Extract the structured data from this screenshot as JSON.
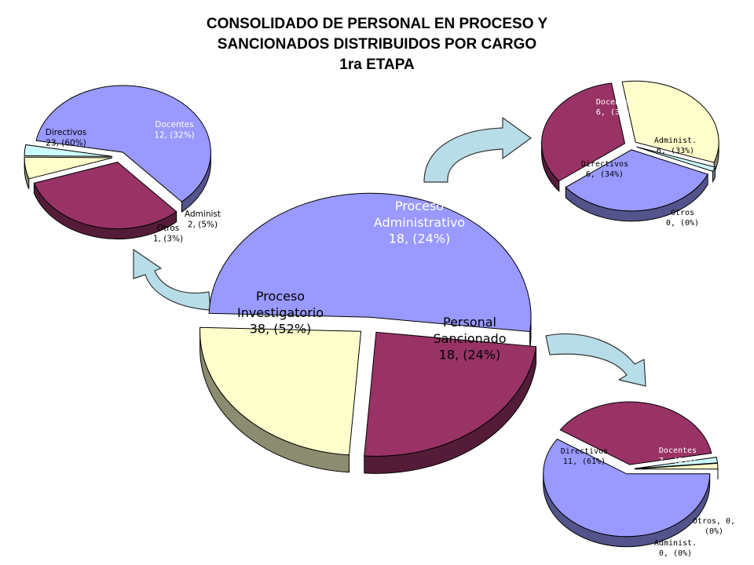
{
  "title": {
    "line1": "CONSOLIDADO DE PERSONAL EN PROCESO Y",
    "line2": "SANCIONADOS DISTRIBUIDOS POR CARGO",
    "line3": "1ra ETAPA"
  },
  "colors": {
    "directivos": "#9999ff",
    "docentes": "#993366",
    "administ": "#ffffcc",
    "otros": "#ccffff",
    "arrow": "#b7dde8"
  },
  "chart_data": [
    {
      "id": "main",
      "type": "pie",
      "slices": [
        {
          "name": "Proceso Investigatorio",
          "value": 38,
          "percent": 52,
          "color": "#9999ff",
          "label_lines": [
            "Proceso",
            "Investigatorio",
            "38, (52%)"
          ]
        },
        {
          "name": "Proceso Administrativo",
          "value": 18,
          "percent": 24,
          "color": "#993366",
          "label_lines": [
            "Proceso",
            "Administrativo",
            "18, (24%)"
          ]
        },
        {
          "name": "Personal Sancionado",
          "value": 18,
          "percent": 24,
          "color": "#ffffcc",
          "label_lines": [
            "Personal",
            "Sancionado",
            "18, (24%)"
          ]
        }
      ]
    },
    {
      "id": "investigatorio",
      "type": "pie",
      "slices": [
        {
          "name": "Directivos",
          "value": 23,
          "percent": 60,
          "color": "#9999ff",
          "label_lines": [
            "Directivos",
            "23, (60%)"
          ]
        },
        {
          "name": "Docentes",
          "value": 12,
          "percent": 32,
          "color": "#993366",
          "label_lines": [
            "Docentes",
            "12, (32%)"
          ]
        },
        {
          "name": "Administ",
          "value": 2,
          "percent": 5,
          "color": "#ffffcc",
          "label_lines": [
            "Administ",
            "2, (5%)"
          ]
        },
        {
          "name": "Otros",
          "value": 1,
          "percent": 3,
          "color": "#ccffff",
          "label_lines": [
            "Otros",
            "1, (3%)"
          ]
        }
      ]
    },
    {
      "id": "administrativo",
      "type": "pie",
      "slices": [
        {
          "name": "Docentes",
          "value": 6,
          "percent": 33,
          "color": "#993366",
          "label_lines": [
            "Docentes",
            "6, (33%)"
          ]
        },
        {
          "name": "Administ.",
          "value": 6,
          "percent": 33,
          "color": "#ffffcc",
          "label_lines": [
            "Administ.",
            "6, (33%)"
          ]
        },
        {
          "name": "Otros",
          "value": 0,
          "percent": 0,
          "color": "#ccffff",
          "label_lines": [
            "Otros",
            "0, (0%)"
          ]
        },
        {
          "name": "Directivos",
          "value": 6,
          "percent": 34,
          "color": "#9999ff",
          "label_lines": [
            "Directivos",
            "6, (34%)"
          ]
        }
      ]
    },
    {
      "id": "sancionado",
      "type": "pie",
      "slices": [
        {
          "name": "Directivos",
          "value": 11,
          "percent": 61,
          "color": "#9999ff",
          "label_lines": [
            "Directivos",
            "11, (61%)"
          ]
        },
        {
          "name": "Docentes",
          "value": 7,
          "percent": 39,
          "color": "#993366",
          "label_lines": [
            "Docentes",
            "7, (39%)"
          ]
        },
        {
          "name": "Otros",
          "value": 0,
          "percent": 0,
          "color": "#ccffff",
          "label_lines": [
            "Otros, 0,",
            "(0%)"
          ]
        },
        {
          "name": "Administ.",
          "value": 0,
          "percent": 0,
          "color": "#ffffcc",
          "label_lines": [
            "Administ.",
            "0, (0%)"
          ]
        }
      ]
    }
  ]
}
